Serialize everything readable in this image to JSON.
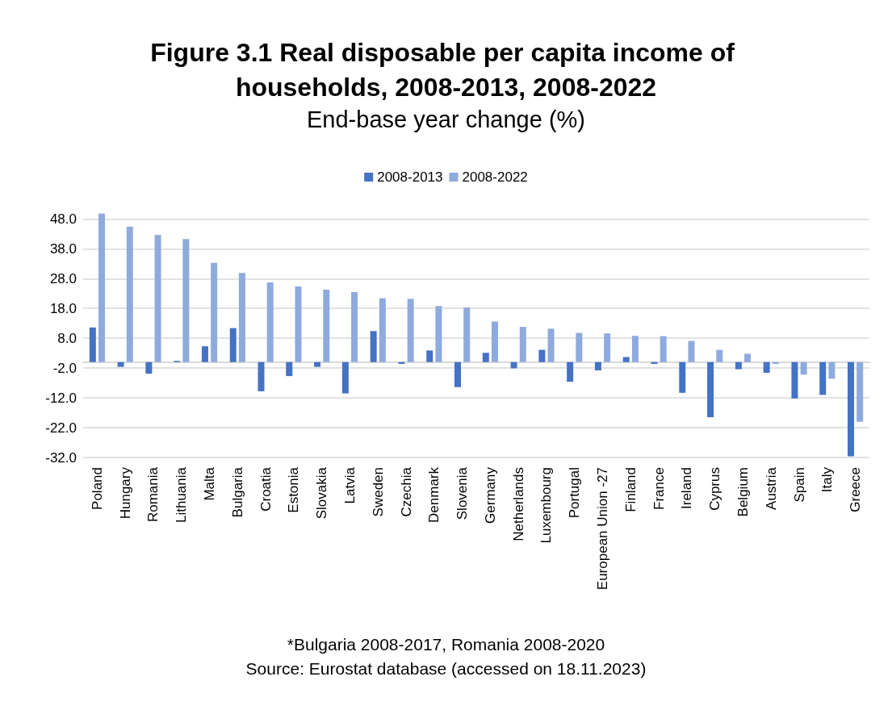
{
  "chart_data": {
    "type": "bar",
    "title": "Figure 3.1 Real disposable per capita income of households, 2008-2013, 2008-2022",
    "subtitle": "End-base year change (%)",
    "categories": [
      "Poland",
      "Hungary",
      "Romania",
      "Lithuania",
      "Malta",
      "Bulgaria",
      "Croatia",
      "Estonia",
      "Slovakia",
      "Latvia",
      "Sweden",
      "Czechia",
      "Denmark",
      "Slovenia",
      "Germany",
      "Netherlands",
      "Luxembourg",
      "Portugal",
      "European Union -27",
      "Finland",
      "France",
      "Ireland",
      "Cyprus",
      "Belgium",
      "Austria",
      "Spain",
      "Italy",
      "Greece"
    ],
    "series": [
      {
        "name": "2008-2013",
        "color": "#4472c4",
        "values": [
          11.6,
          -1.6,
          -3.9,
          0.4,
          5.3,
          11.4,
          -9.8,
          -4.7,
          -1.6,
          -10.5,
          10.4,
          -0.6,
          3.9,
          -8.4,
          3.1,
          -2.1,
          4.1,
          -6.6,
          -2.8,
          1.7,
          -0.6,
          -10.3,
          -18.5,
          -2.4,
          -3.6,
          -12.2,
          -11.0,
          -31.6
        ]
      },
      {
        "name": "2008-2022",
        "color": "#8faadc",
        "values": [
          49.8,
          45.4,
          42.6,
          41.3,
          33.3,
          29.9,
          26.7,
          25.4,
          24.3,
          23.5,
          21.4,
          21.2,
          18.8,
          18.3,
          13.6,
          11.8,
          11.2,
          9.8,
          9.6,
          8.8,
          8.7,
          7.1,
          4.1,
          2.8,
          -0.6,
          -4.2,
          -5.6,
          -20.0
        ]
      }
    ],
    "ylim": [
      -32,
      50
    ],
    "yticks": [
      {
        "value": -32,
        "label": "-32.0"
      },
      {
        "value": -22,
        "label": "-22.0"
      },
      {
        "value": -12,
        "label": "-12.0"
      },
      {
        "value": -2,
        "label": "-2.0"
      },
      {
        "value": 8,
        "label": "8.0"
      },
      {
        "value": 18,
        "label": "18.0"
      },
      {
        "value": 28,
        "label": "28.0"
      },
      {
        "value": 38,
        "label": "38.0"
      },
      {
        "value": 48,
        "label": "48.0"
      }
    ],
    "grid": "y",
    "legend": "top",
    "annotations": [
      "*Bulgaria 2008-2017, Romania 2008-2020",
      "Source: Eurostat database (accessed on 18.11.2023)"
    ]
  }
}
